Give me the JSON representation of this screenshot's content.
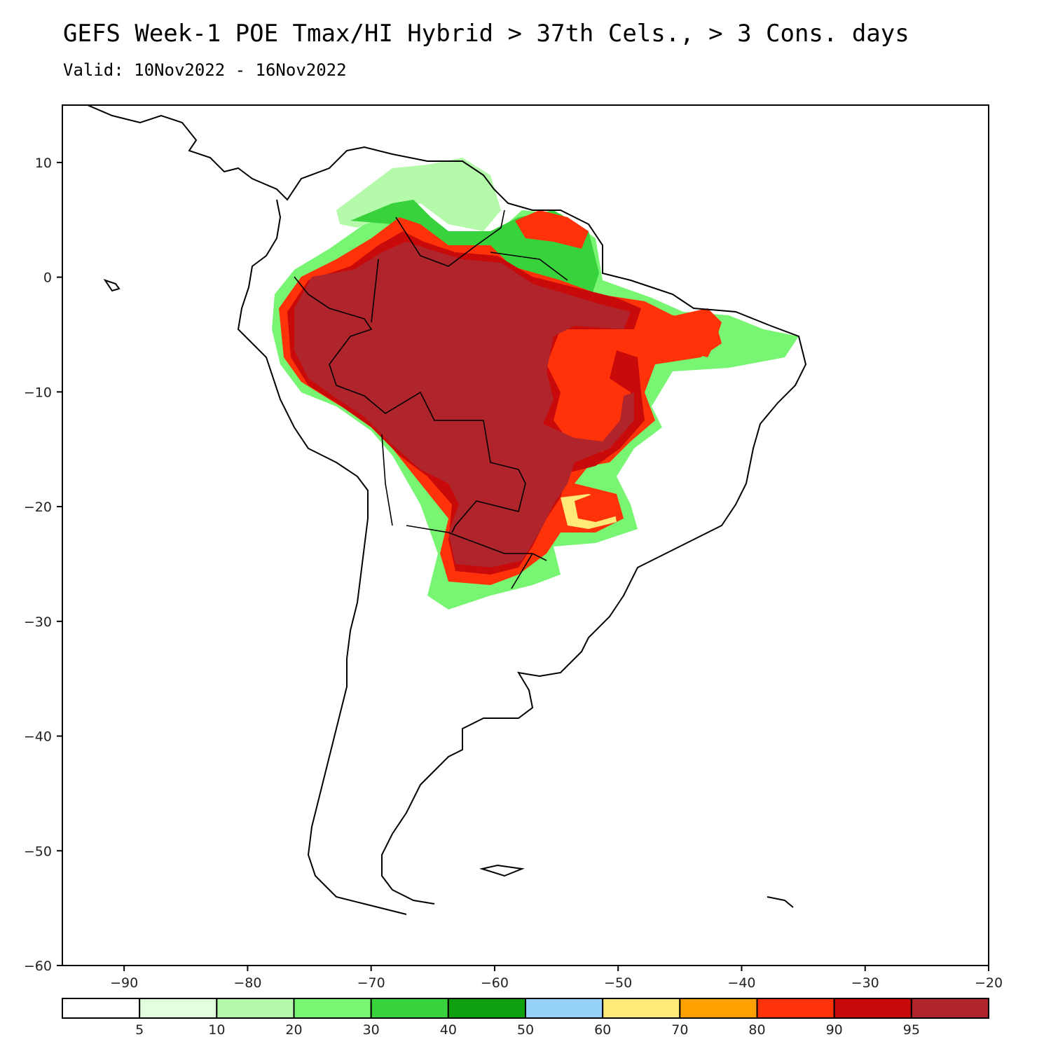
{
  "header": {
    "title": "GEFS Week-1 POE Tmax/HI Hybrid > 37th Cels., > 3 Cons. days",
    "valid": "Valid: 10Nov2022 - 16Nov2022"
  },
  "map": {
    "lon_range": [
      -95,
      -20
    ],
    "lat_range": [
      -60,
      15
    ],
    "x_ticks": [
      -90,
      -80,
      -70,
      -60,
      -50,
      -40,
      -30,
      -20
    ],
    "x_tick_labels": [
      "−90",
      "−80",
      "−70",
      "−60",
      "−50",
      "−40",
      "−30",
      "−20"
    ],
    "y_ticks": [
      10,
      0,
      -10,
      -20,
      -30,
      -40,
      -50,
      -60
    ],
    "y_tick_labels": [
      "10",
      "0",
      "−10",
      "−20",
      "−30",
      "−40",
      "−50",
      "−60"
    ],
    "coastline_color": "#000000"
  },
  "colorbar": {
    "bins": [
      "#ffffff",
      "#e1ffdc",
      "#b4faaa",
      "#78f573",
      "#37d23c",
      "#0fa00f",
      "#96d2fa",
      "#ffe978",
      "#ffa000",
      "#ff320a",
      "#c80a0a",
      "#b0252b"
    ],
    "labels": [
      "5",
      "10",
      "20",
      "30",
      "40",
      "50",
      "60",
      "70",
      "80",
      "90",
      "95"
    ]
  }
}
